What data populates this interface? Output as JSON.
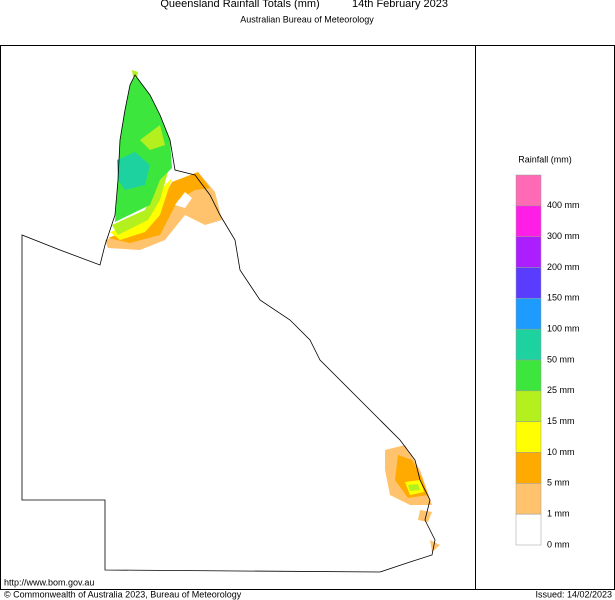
{
  "header": {
    "title": "Queensland Rainfall Totals (mm)",
    "date": "14th February 2023",
    "subtitle": "Australian Bureau of Meteorology"
  },
  "legend": {
    "title": "Rainfall (mm)",
    "items": [
      {
        "color": "#ff6ab4",
        "label": "400 mm"
      },
      {
        "color": "#ff1ee6",
        "label": "300 mm"
      },
      {
        "color": "#aa1eff",
        "label": "200 mm"
      },
      {
        "color": "#5a3cff",
        "label": "150 mm"
      },
      {
        "color": "#1e9bff",
        "label": "100 mm"
      },
      {
        "color": "#1ed2a0",
        "label": "50 mm"
      },
      {
        "color": "#3ce63c",
        "label": "25 mm"
      },
      {
        "color": "#b4f01e",
        "label": "15 mm"
      },
      {
        "color": "#ffff00",
        "label": "10 mm"
      },
      {
        "color": "#ffaa00",
        "label": "5 mm"
      },
      {
        "color": "#ffc36e",
        "label": "1 mm"
      },
      {
        "color": "#ffffff",
        "label": "0 mm"
      }
    ]
  },
  "footer": {
    "url": "http://www.bom.gov.au",
    "copyright": "© Commonwealth of Australia 2023, Bureau of Meteorology",
    "issued": "Issued: 14/02/2023"
  }
}
